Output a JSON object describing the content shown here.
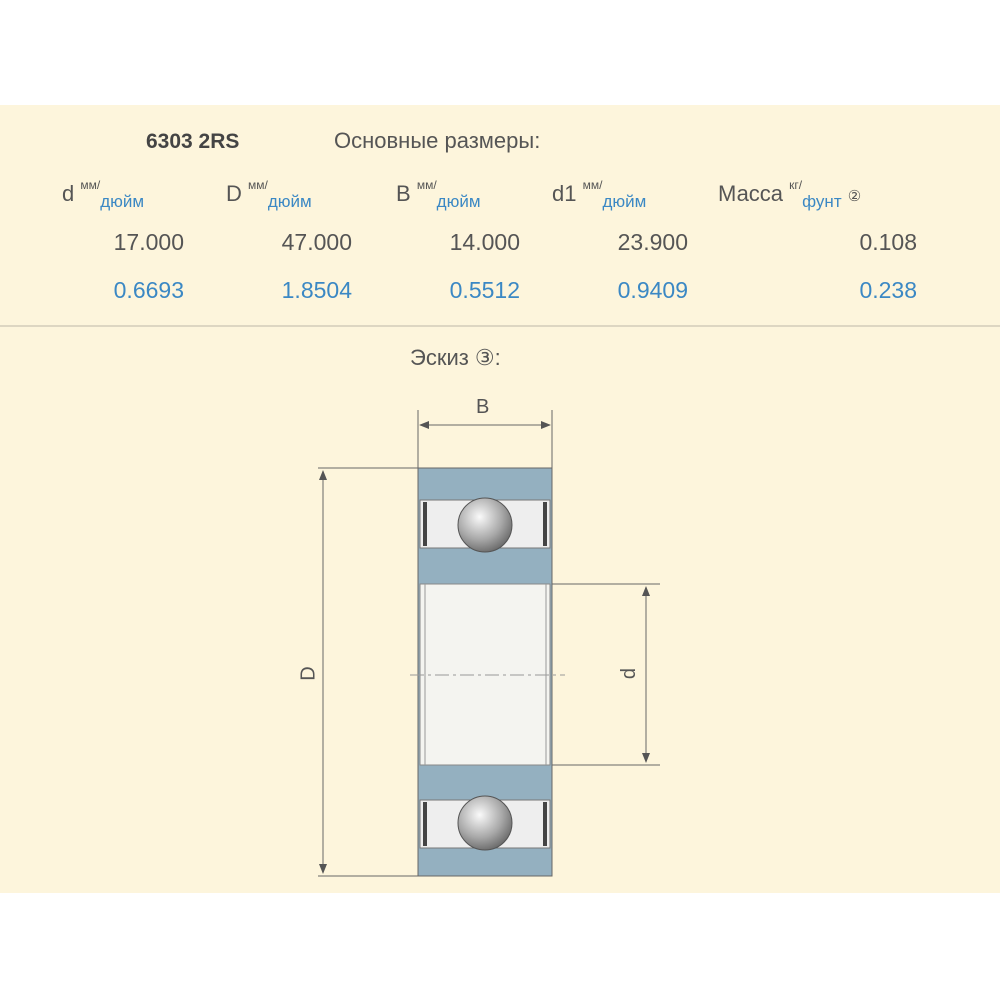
{
  "title": "6303 2RS",
  "subtitle": "Основные размеры:",
  "columns": [
    {
      "symbol": "d",
      "unit_top": "мм/",
      "unit_bottom": "дюйм"
    },
    {
      "symbol": "D",
      "unit_top": "мм/",
      "unit_bottom": "дюйм"
    },
    {
      "symbol": "B",
      "unit_top": "мм/",
      "unit_bottom": "дюйм"
    },
    {
      "symbol": "d1",
      "unit_top": "мм/",
      "unit_bottom": "дюйм"
    },
    {
      "symbol": "Масса",
      "unit_top": "кг/",
      "unit_bottom": "фунт",
      "note": "②"
    }
  ],
  "metric_row": [
    "17.000",
    "47.000",
    "14.000",
    "23.900",
    "0.108"
  ],
  "imperial_row": [
    "0.6693",
    "1.8504",
    "0.5512",
    "0.9409",
    "0.238"
  ],
  "sketch": {
    "label": "Эскиз ③:",
    "dim_B": "B",
    "dim_D": "D",
    "dim_d": "d"
  },
  "colors": {
    "background": "#fdf5dc",
    "imperial_text": "#3b88c4",
    "ring": "#94b0c0"
  }
}
